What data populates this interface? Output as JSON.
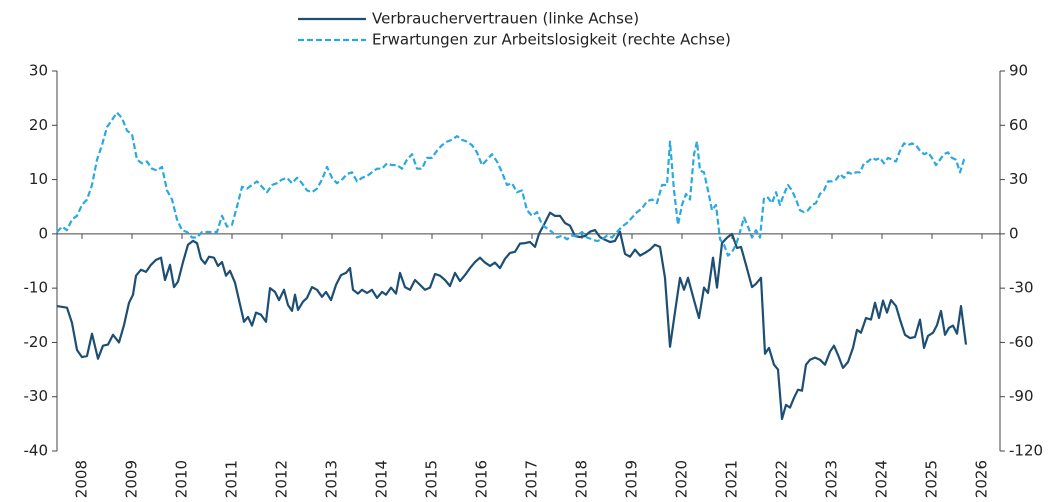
{
  "chart_data": {
    "type": "line",
    "legend": "top",
    "xlim": [
      2007.5,
      2026.36
    ],
    "xticks": [
      2008,
      2009,
      2010,
      2011,
      2012,
      2013,
      2014,
      2015,
      2016,
      2017,
      2018,
      2019,
      2020,
      2021,
      2022,
      2023,
      2024,
      2025,
      2026
    ],
    "ylim": [
      -40,
      30
    ],
    "yticks": [
      -40,
      -30,
      -20,
      -10,
      0,
      10,
      20,
      30
    ],
    "y2lim": [
      -120,
      90
    ],
    "y2ticks": [
      -120,
      -90,
      -60,
      -30,
      0,
      30,
      60,
      90
    ],
    "series": [
      {
        "name": "Verbrauchervertrauen (linke Achse)",
        "color": "#1d4e73",
        "axis": "y",
        "x": [
          2007.5,
          2007.7,
          2007.8,
          2007.9,
          2008.0,
          2008.1,
          2008.2,
          2008.32,
          2008.42,
          2008.52,
          2008.62,
          2008.74,
          2008.84,
          2008.94,
          2009.02,
          2009.08,
          2009.18,
          2009.28,
          2009.38,
          2009.48,
          2009.58,
          2009.66,
          2009.76,
          2009.84,
          2009.92,
          2010.02,
          2010.12,
          2010.22,
          2010.3,
          2010.38,
          2010.46,
          2010.54,
          2010.64,
          2010.72,
          2010.8,
          2010.88,
          2010.96,
          2011.06,
          2011.14,
          2011.24,
          2011.32,
          2011.4,
          2011.48,
          2011.58,
          2011.68,
          2011.76,
          2011.86,
          2011.94,
          2012.04,
          2012.12,
          2012.2,
          2012.26,
          2012.32,
          2012.42,
          2012.5,
          2012.6,
          2012.7,
          2012.8,
          2012.88,
          2012.98,
          2013.08,
          2013.18,
          2013.28,
          2013.36,
          2013.42,
          2013.52,
          2013.6,
          2013.7,
          2013.8,
          2013.9,
          2014.0,
          2014.08,
          2014.18,
          2014.28,
          2014.36,
          2014.46,
          2014.56,
          2014.66,
          2014.76,
          2014.86,
          2014.96,
          2015.06,
          2015.16,
          2015.26,
          2015.36,
          2015.46,
          2015.56,
          2015.66,
          2015.76,
          2015.86,
          2015.96,
          2016.06,
          2016.16,
          2016.26,
          2016.36,
          2016.46,
          2016.56,
          2016.66,
          2016.76,
          2016.86,
          2016.96,
          2017.06,
          2017.14,
          2017.24,
          2017.36,
          2017.46,
          2017.56,
          2017.66,
          2017.76,
          2017.86,
          2017.96,
          2018.06,
          2018.16,
          2018.26,
          2018.36,
          2018.46,
          2018.56,
          2018.66,
          2018.76,
          2018.86,
          2018.96,
          2019.06,
          2019.16,
          2019.26,
          2019.36,
          2019.46,
          2019.56,
          2019.66,
          2019.76,
          2019.86,
          2019.96,
          2020.04,
          2020.12,
          2020.24,
          2020.34,
          2020.44,
          2020.52,
          2020.62,
          2020.7,
          2020.8,
          2020.9,
          2021.0,
          2021.1,
          2021.18,
          2021.28,
          2021.4,
          2021.48,
          2021.58,
          2021.66,
          2021.74,
          2021.84,
          2021.92,
          2022.0,
          2022.08,
          2022.16,
          2022.24,
          2022.32,
          2022.4,
          2022.48,
          2022.56,
          2022.66,
          2022.76,
          2022.86,
          2022.96,
          2023.04,
          2023.12,
          2023.22,
          2023.32,
          2023.42,
          2023.5,
          2023.58,
          2023.68,
          2023.78,
          2023.86,
          2023.94,
          2024.02,
          2024.1,
          2024.18,
          2024.28,
          2024.36,
          2024.46,
          2024.56,
          2024.66,
          2024.76,
          2024.84,
          2024.92,
          2025.02,
          2025.1,
          2025.18,
          2025.26,
          2025.34,
          2025.42,
          2025.5,
          2025.58,
          2025.68
        ],
        "values": [
          -13.3,
          -13.6,
          -16.4,
          -21.4,
          -22.7,
          -22.5,
          -18.4,
          -23,
          -20.6,
          -20.4,
          -18.6,
          -20,
          -16.8,
          -12.7,
          -11.2,
          -7.7,
          -6.6,
          -7,
          -5.7,
          -4.8,
          -4.4,
          -8.5,
          -5.7,
          -9.8,
          -8.8,
          -5.2,
          -2,
          -1.3,
          -1.7,
          -4.6,
          -5.5,
          -4.2,
          -4.4,
          -5.9,
          -5.2,
          -7.7,
          -6.8,
          -9,
          -12.2,
          -16.2,
          -15.3,
          -16.9,
          -14.5,
          -14.9,
          -16.2,
          -10,
          -10.7,
          -12.2,
          -10.3,
          -13.1,
          -14.2,
          -11.2,
          -14,
          -12.5,
          -11.8,
          -9.8,
          -10.3,
          -11.6,
          -10.7,
          -12.2,
          -9.4,
          -7.6,
          -7.2,
          -6.3,
          -10.3,
          -11,
          -10.3,
          -10.9,
          -10.3,
          -11.8,
          -10.7,
          -11.2,
          -9.9,
          -11,
          -7.2,
          -9.8,
          -10.3,
          -8.5,
          -9.4,
          -10.3,
          -9.9,
          -7.4,
          -7.7,
          -8.5,
          -9.6,
          -7.2,
          -8.7,
          -7.6,
          -6.3,
          -5.2,
          -4.4,
          -5.3,
          -5.9,
          -5.3,
          -6.3,
          -4.6,
          -3.5,
          -3.3,
          -1.8,
          -1.7,
          -1.5,
          -2.4,
          0,
          1.7,
          3.9,
          3.3,
          3.3,
          2,
          1.5,
          -0.4,
          -0.6,
          -0.4,
          0.4,
          0.7,
          -0.6,
          -1.1,
          -1.5,
          -1.3,
          0.4,
          -3.7,
          -4.2,
          -2.9,
          -4,
          -3.5,
          -2.9,
          -2,
          -2.4,
          -8.1,
          -20.8,
          -14.4,
          -8.1,
          -10.3,
          -8.1,
          -12.2,
          -15.5,
          -9.9,
          -10.9,
          -4.4,
          -9.9,
          -1.7,
          -0.7,
          0,
          -2.6,
          -2.4,
          -5.7,
          -9.8,
          -9.2,
          -8.1,
          -22.1,
          -21,
          -24.1,
          -25,
          -34.1,
          -31.5,
          -32,
          -30.2,
          -28.7,
          -28.9,
          -24.1,
          -23.2,
          -22.8,
          -23.2,
          -24.1,
          -21.7,
          -20.6,
          -22.3,
          -24.7,
          -23.6,
          -21,
          -17.7,
          -18.2,
          -15.5,
          -15.8,
          -12.7,
          -15.5,
          -12.3,
          -14.5,
          -12.2,
          -13.3,
          -15.8,
          -18.6,
          -19.2,
          -19,
          -15.8,
          -21,
          -18.8,
          -18.2,
          -16.8,
          -14.2,
          -18.6,
          -17.3,
          -16.9,
          -18.4,
          -13.3,
          -20.4
        ]
      },
      {
        "name": "Erwartungen zur Arbeitslosigkeit (rechte Achse)",
        "color": "#29a9e0",
        "axis": "y2",
        "dashed": true,
        "x": [
          2007.5,
          2007.6,
          2007.7,
          2007.8,
          2007.9,
          2008.0,
          2008.1,
          2008.2,
          2008.3,
          2008.4,
          2008.5,
          2008.6,
          2008.7,
          2008.8,
          2008.9,
          2009.0,
          2009.1,
          2009.2,
          2009.3,
          2009.4,
          2009.5,
          2009.6,
          2009.7,
          2009.8,
          2009.9,
          2010.0,
          2010.1,
          2010.2,
          2010.3,
          2010.4,
          2010.5,
          2010.6,
          2010.7,
          2010.8,
          2010.9,
          2011.0,
          2011.1,
          2011.2,
          2011.3,
          2011.4,
          2011.5,
          2011.6,
          2011.7,
          2011.8,
          2011.9,
          2012.0,
          2012.1,
          2012.2,
          2012.3,
          2012.4,
          2012.5,
          2012.6,
          2012.7,
          2012.8,
          2012.9,
          2013.0,
          2013.1,
          2013.2,
          2013.3,
          2013.4,
          2013.5,
          2013.6,
          2013.7,
          2013.8,
          2013.9,
          2014.0,
          2014.1,
          2014.2,
          2014.3,
          2014.4,
          2014.5,
          2014.6,
          2014.7,
          2014.8,
          2014.9,
          2015.0,
          2015.1,
          2015.2,
          2015.3,
          2015.4,
          2015.5,
          2015.6,
          2015.7,
          2015.8,
          2015.9,
          2016.0,
          2016.1,
          2016.2,
          2016.3,
          2016.4,
          2016.5,
          2016.6,
          2016.7,
          2016.8,
          2016.9,
          2017.0,
          2017.1,
          2017.2,
          2017.3,
          2017.4,
          2017.5,
          2017.6,
          2017.7,
          2017.8,
          2017.9,
          2018.0,
          2018.1,
          2018.2,
          2018.3,
          2018.4,
          2018.5,
          2018.6,
          2018.7,
          2018.8,
          2018.9,
          2019.0,
          2019.1,
          2019.2,
          2019.3,
          2019.4,
          2019.5,
          2019.6,
          2019.7,
          2019.76,
          2019.84,
          2019.92,
          2020.0,
          2020.08,
          2020.16,
          2020.24,
          2020.3,
          2020.36,
          2020.44,
          2020.52,
          2020.6,
          2020.68,
          2020.76,
          2020.84,
          2020.92,
          2021.0,
          2021.08,
          2021.16,
          2021.24,
          2021.32,
          2021.4,
          2021.48,
          2021.56,
          2021.64,
          2021.72,
          2021.8,
          2021.88,
          2021.96,
          2022.04,
          2022.12,
          2022.2,
          2022.28,
          2022.36,
          2022.44,
          2022.52,
          2022.6,
          2022.68,
          2022.76,
          2022.84,
          2022.92,
          2023.0,
          2023.08,
          2023.16,
          2023.24,
          2023.32,
          2023.4,
          2023.48,
          2023.56,
          2023.64,
          2023.72,
          2023.8,
          2023.88,
          2023.96,
          2024.04,
          2024.12,
          2024.2,
          2024.28,
          2024.36,
          2024.44,
          2024.52,
          2024.6,
          2024.68,
          2024.76,
          2024.84,
          2024.92,
          2025.0,
          2025.08,
          2025.16,
          2025.24,
          2025.32,
          2025.4,
          2025.48,
          2025.56,
          2025.64,
          2025.68
        ],
        "values": [
          1,
          4,
          2,
          8,
          10,
          16,
          19,
          27,
          41,
          49,
          59,
          63,
          67,
          64,
          57,
          55,
          41,
          39,
          40,
          36,
          35,
          37,
          24,
          19,
          8,
          2,
          1,
          -2,
          -2,
          1,
          1,
          1,
          1,
          10,
          4,
          5,
          15,
          26,
          25,
          27,
          29,
          26,
          23,
          27,
          28,
          30,
          31,
          28,
          31,
          28,
          24,
          23,
          25,
          30,
          37,
          31,
          28,
          30,
          33,
          34,
          29,
          31,
          32,
          34,
          36,
          36,
          39,
          38,
          38,
          36,
          41,
          44,
          36,
          36,
          42,
          42,
          46,
          49,
          51,
          52,
          54,
          52,
          51,
          49,
          45,
          38,
          41,
          44,
          40,
          34,
          27,
          28,
          23,
          24,
          13,
          10,
          12,
          5,
          3,
          1,
          -2,
          -1,
          -3,
          -1,
          -1,
          1,
          -2,
          -3,
          -4,
          -3,
          -1,
          -2,
          1,
          4,
          6,
          9,
          12,
          14,
          18,
          19,
          17,
          27,
          27,
          51,
          24,
          5,
          16,
          22,
          19,
          44,
          51,
          35,
          34,
          24,
          13,
          16,
          -3,
          -6,
          -12,
          -10,
          -6,
          1,
          9,
          4,
          -2,
          2,
          -2,
          20,
          20,
          17,
          23,
          16,
          22,
          27,
          24,
          19,
          13,
          12,
          13,
          16,
          17,
          22,
          24,
          29,
          29,
          30,
          33,
          31,
          34,
          33,
          34,
          34,
          39,
          40,
          42,
          41,
          42,
          39,
          42,
          41,
          40,
          46,
          50,
          49,
          50,
          49,
          46,
          44,
          45,
          42,
          38,
          41,
          44,
          45,
          42,
          41,
          34,
          41,
          42
        ]
      }
    ]
  }
}
